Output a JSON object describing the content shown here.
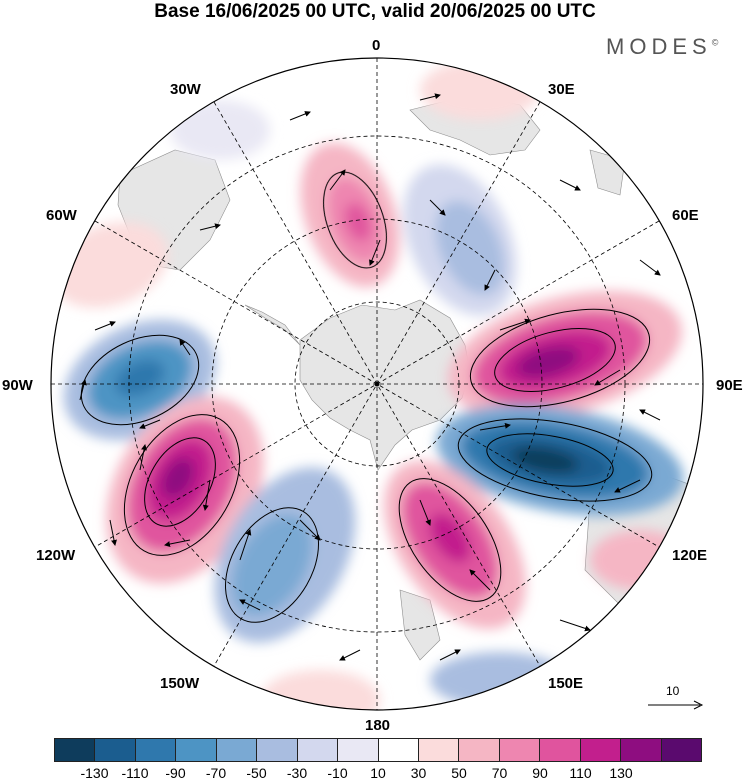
{
  "title": "Base 16/06/2025 00 UTC, valid 20/06/2025 00 UTC",
  "brand": "MODES",
  "brand_mark": "©",
  "map": {
    "projection": "south polar stereographic",
    "longitude_labels": {
      "top": "0",
      "top_right": "30E",
      "upper_right": "60E",
      "right": "90E",
      "lower_right": "120E",
      "bottom_right": "150E",
      "bottom": "180",
      "bottom_left": "150W",
      "lower_left": "120W",
      "left": "90W",
      "upper_left": "60W",
      "top_left": "30W"
    },
    "reference_vector_label": "10",
    "colors": {
      "land": "#e6e6e6",
      "background": "#ffffff",
      "graticule": "#000000",
      "vector": "#000000"
    }
  },
  "colorbar": {
    "colors": [
      "#0e3c5c",
      "#1b5d8f",
      "#2f78ad",
      "#4d94c4",
      "#7aa9d3",
      "#a9bde0",
      "#d3d8ee",
      "#e9e8f4",
      "#ffffff",
      "#fbdcdc",
      "#f5b6c4",
      "#ee86b0",
      "#e0549e",
      "#c21f8d",
      "#8e0d80",
      "#5a0a6e"
    ],
    "tick_labels": [
      "-130",
      "-110",
      "-90",
      "-70",
      "-50",
      "-30",
      "-10",
      "10",
      "30",
      "50",
      "70",
      "90",
      "110",
      "130"
    ]
  }
}
